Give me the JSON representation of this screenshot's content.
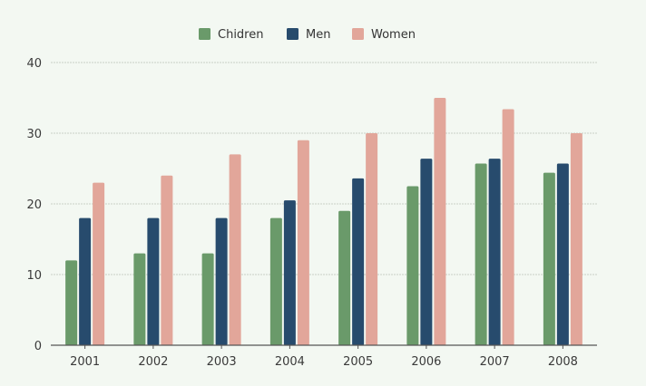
{
  "chart_data": {
    "type": "bar",
    "categories": [
      "2001",
      "2002",
      "2003",
      "2004",
      "2005",
      "2006",
      "2007",
      "2008"
    ],
    "series": [
      {
        "name": "Chidren",
        "color": "#6a9a6a",
        "values": [
          12,
          13,
          13,
          18,
          19,
          22.5,
          25.7,
          24.4
        ]
      },
      {
        "name": "Men",
        "color": "#274b6d",
        "values": [
          18,
          18,
          18,
          20.5,
          23.6,
          26.4,
          26.4,
          25.7
        ]
      },
      {
        "name": "Women",
        "color": "#e2a69a",
        "values": [
          23,
          24,
          27,
          29,
          30,
          35,
          33.4,
          30
        ]
      }
    ],
    "yticks": [
      0,
      10,
      20,
      30,
      40
    ],
    "ylim": [
      0,
      40
    ],
    "grid": true,
    "legend_position": "top-center",
    "title": "",
    "xlabel": "",
    "ylabel": ""
  }
}
